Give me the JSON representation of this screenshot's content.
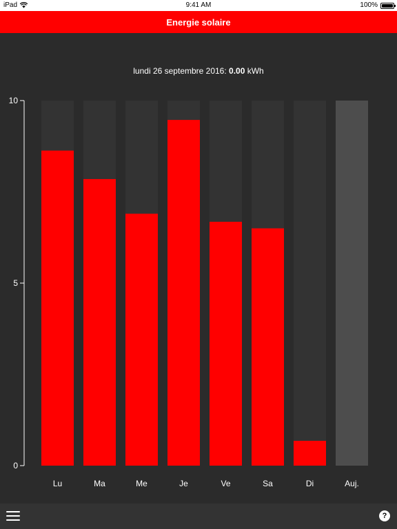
{
  "status_bar": {
    "carrier": "iPad",
    "time": "9:41 AM",
    "battery": "100%"
  },
  "nav": {
    "title": "Energie solaire"
  },
  "summary": {
    "prefix": "lundi 26 septembre 2016: ",
    "value": "0.00",
    "unit": " kWh"
  },
  "colors": {
    "accent": "#ff0000",
    "background": "#2b2b2b",
    "bar_track": "#333333",
    "today_bar": "#4d4d4d",
    "axis": "#ffffff"
  },
  "chart_data": {
    "type": "bar",
    "categories": [
      "Lu",
      "Ma",
      "Me",
      "Je",
      "Ve",
      "Sa",
      "Di",
      "Auj."
    ],
    "values": [
      8.63,
      7.85,
      6.9,
      9.47,
      6.68,
      6.5,
      0.68,
      0.0
    ],
    "max": 10,
    "ylim": [
      0,
      10
    ],
    "yticks": [
      0,
      5,
      10
    ],
    "ytick_labels": [
      "0",
      "5",
      "10"
    ]
  },
  "bottom_bar": {
    "help_label": "?"
  }
}
